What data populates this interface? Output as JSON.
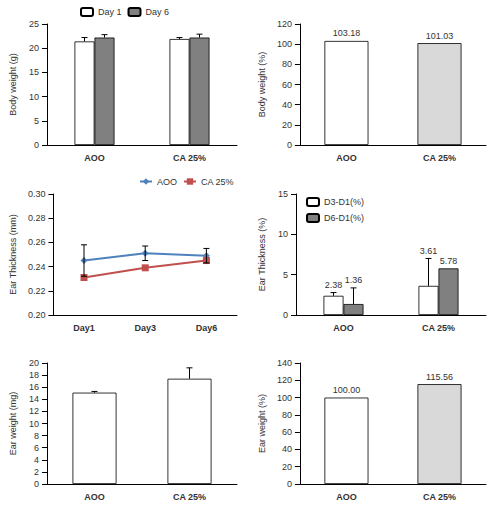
{
  "chart_data": [
    {
      "type": "bar",
      "ylabel": "Body weight (g)",
      "categories": [
        "AOO",
        "CA 25%"
      ],
      "series": [
        {
          "name": "Day 1",
          "color": "#ffffff",
          "values": [
            21.4,
            21.9
          ],
          "errors": [
            0.8,
            0.3
          ]
        },
        {
          "name": "Day 6",
          "color": "#808080",
          "values": [
            22.2,
            22.2
          ],
          "errors": [
            0.6,
            0.7
          ]
        }
      ],
      "ylim": [
        0,
        25
      ],
      "yticks": [
        0,
        5,
        10,
        15,
        20,
        25
      ],
      "legend": "top",
      "data_labels": false,
      "grid": false
    },
    {
      "type": "bar",
      "ylabel": "Body weight (%)",
      "categories": [
        "AOO",
        "CA 25%"
      ],
      "values": [
        103.18,
        101.03
      ],
      "colors": [
        "#ffffff",
        "#d9d9d9"
      ],
      "ylim": [
        0,
        120
      ],
      "yticks": [
        0,
        20,
        40,
        60,
        80,
        100,
        120
      ],
      "data_labels": true,
      "grid": false
    },
    {
      "type": "line",
      "ylabel": "Ear Thickness (mm)",
      "categories": [
        "Day1",
        "Day3",
        "Day6"
      ],
      "series": [
        {
          "name": "AOO",
          "color": "#4f81bd",
          "marker": "diamond",
          "values": [
            0.245,
            0.251,
            0.249
          ],
          "errors": [
            0.013,
            0.006,
            0.006
          ]
        },
        {
          "name": "CA 25%",
          "color": "#c0504d",
          "marker": "square",
          "values": [
            0.231,
            0.239,
            0.245
          ]
        }
      ],
      "ylim": [
        0.2,
        0.3
      ],
      "yticks": [
        {
          "value": 0.2,
          "label": "0.20"
        },
        0.22,
        0.24,
        0.26,
        0.28,
        {
          "value": 0.3,
          "label": "0.30"
        }
      ],
      "legend": "top-right",
      "data_labels": false,
      "grid": false
    },
    {
      "type": "bar",
      "ylabel": "Ear Thickness (%)",
      "categories": [
        "AOO",
        "CA 25%"
      ],
      "series": [
        {
          "name": "D3-D1(%)",
          "color": "#ffffff",
          "values": [
            2.38,
            3.61
          ],
          "errors": [
            0.4,
            3.4
          ]
        },
        {
          "name": "D6-D1(%)",
          "color": "#808080",
          "values": [
            1.36,
            5.78
          ],
          "errors": [
            2.0,
            null
          ]
        }
      ],
      "ylim": [
        0,
        15
      ],
      "yticks": [
        0,
        5,
        10,
        15
      ],
      "legend": "top-left",
      "data_labels": true,
      "grid": false
    },
    {
      "type": "bar",
      "ylabel": "Ear weight (mg)",
      "categories": [
        "AOO",
        "CA 25%"
      ],
      "values": [
        15.1,
        17.4
      ],
      "colors": [
        "#ffffff",
        "#ffffff"
      ],
      "errors": [
        0.2,
        1.8
      ],
      "ylim": [
        0,
        20
      ],
      "yticks": [
        0,
        2,
        4,
        6,
        8,
        10,
        12,
        14,
        16,
        18,
        20
      ],
      "data_labels": false,
      "grid": false
    },
    {
      "type": "bar",
      "ylabel": "Ear weight (%)",
      "categories": [
        "AOO",
        "CA 25%"
      ],
      "values": [
        100,
        115.56
      ],
      "value_labels": [
        "100.00",
        "115.56"
      ],
      "colors": [
        "#ffffff",
        "#d9d9d9"
      ],
      "ylim": [
        0,
        140
      ],
      "yticks": [
        0,
        20,
        40,
        60,
        80,
        100,
        120,
        140
      ],
      "data_labels": true,
      "grid": false
    }
  ]
}
